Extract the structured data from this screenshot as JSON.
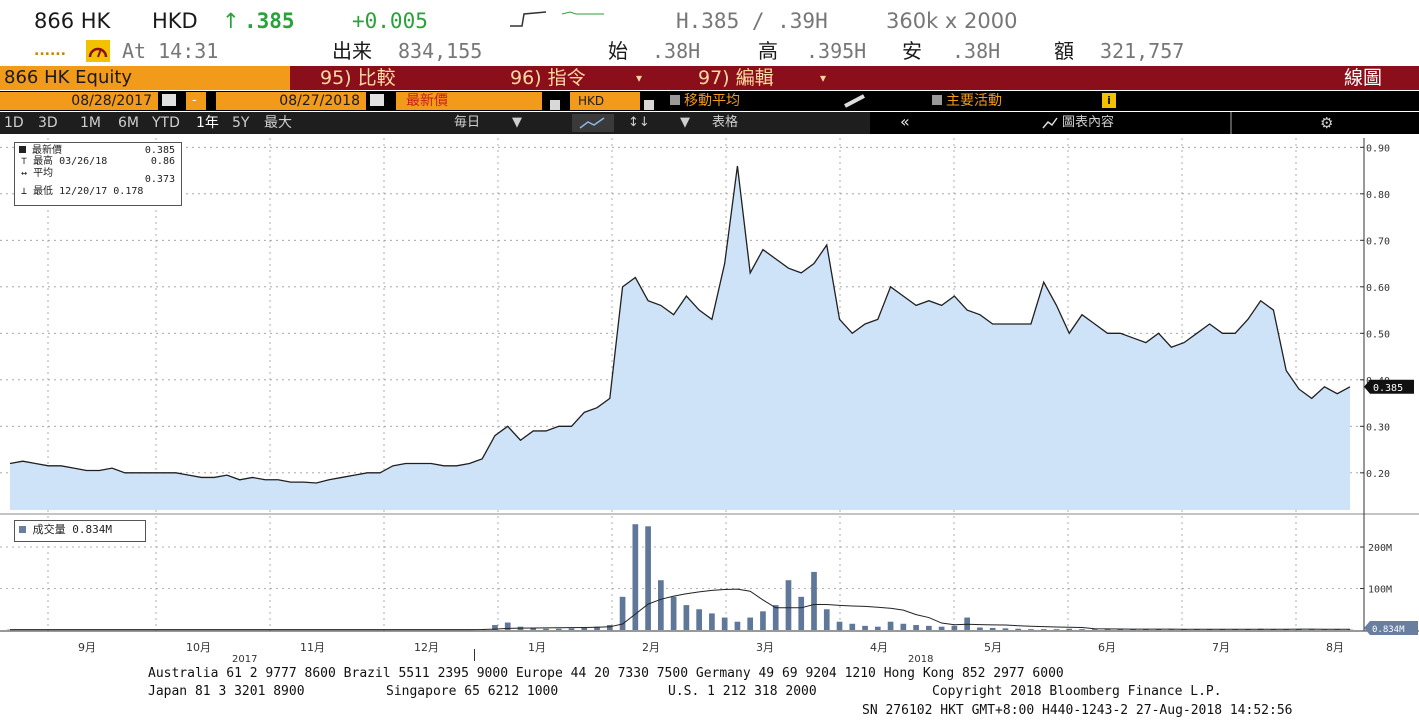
{
  "quote": {
    "ticker": "866 HK",
    "currency": "HKD",
    "arrow": "↑",
    "last": ".385",
    "change": "+0.005",
    "quote_bid": "H.385 / .39H",
    "size": "360k x 2000",
    "dots": "......",
    "at_label": "At 14:31",
    "vol_label": "出来",
    "vol_value": "834,155",
    "open_label": "始",
    "open_value": ".38H",
    "high_label": "高",
    "high_value": ".395H",
    "low_label": "安",
    "low_value": ".38H",
    "amt_label": "額",
    "amt_value": "321,757"
  },
  "command_bar": {
    "security": "866 HK Equity",
    "btn_compare": "95) 比較",
    "btn_actions": "96) 指令",
    "btn_edit": "97) 編輯",
    "view_name": "線圖"
  },
  "settings_bar": {
    "start_date": "08/28/2017",
    "dash": "-",
    "end_date": "08/27/2018",
    "price_field": "最新價",
    "currency": "HKD",
    "ma_label": "移動平均",
    "events_label": "主要活動",
    "info_label": "i"
  },
  "toolbar": {
    "periods": [
      "1D",
      "3D",
      "1M",
      "6M",
      "YTD",
      "1年",
      "5Y",
      "最大"
    ],
    "active_period": "1年",
    "frequency": "毎日",
    "table_label": "表格",
    "collapse": "«",
    "chart_content": "圖表內容",
    "settings": "⚙"
  },
  "legend": {
    "last_label": "最新價",
    "last_value": "0.385",
    "high_label": "最高 03/26/18",
    "high_value": "0.86",
    "avg_label": "平均",
    "avg_value": "0.373",
    "low_label": "最低 12/20/17",
    "low_value": "0.178"
  },
  "volume_legend": {
    "label": "成交量",
    "value": "0.834M"
  },
  "chart_data": [
    {
      "type": "area",
      "series": [
        {
          "name": "最新價",
          "values": [
            0.22,
            0.225,
            0.22,
            0.215,
            0.215,
            0.21,
            0.205,
            0.205,
            0.21,
            0.2,
            0.2,
            0.2,
            0.2,
            0.2,
            0.195,
            0.19,
            0.19,
            0.195,
            0.185,
            0.19,
            0.185,
            0.185,
            0.18,
            0.18,
            0.178,
            0.185,
            0.19,
            0.195,
            0.2,
            0.2,
            0.215,
            0.22,
            0.22,
            0.22,
            0.215,
            0.215,
            0.22,
            0.23,
            0.28,
            0.3,
            0.27,
            0.29,
            0.29,
            0.3,
            0.3,
            0.33,
            0.34,
            0.36,
            0.6,
            0.62,
            0.57,
            0.56,
            0.54,
            0.58,
            0.55,
            0.53,
            0.65,
            0.86,
            0.63,
            0.68,
            0.66,
            0.64,
            0.63,
            0.65,
            0.69,
            0.53,
            0.5,
            0.52,
            0.53,
            0.6,
            0.58,
            0.56,
            0.57,
            0.56,
            0.58,
            0.55,
            0.54,
            0.52,
            0.52,
            0.52,
            0.52,
            0.61,
            0.56,
            0.5,
            0.54,
            0.52,
            0.5,
            0.5,
            0.49,
            0.48,
            0.5,
            0.47,
            0.48,
            0.5,
            0.52,
            0.5,
            0.5,
            0.53,
            0.57,
            0.55,
            0.42,
            0.38,
            0.36,
            0.385,
            0.37,
            0.385
          ]
        }
      ],
      "ylim": [
        0.12,
        0.92
      ],
      "yticks": [
        "0.90",
        "0.80",
        "0.70",
        "0.60",
        "0.50",
        "0.40",
        "0.30",
        "0.20"
      ],
      "last_marker": "0.385",
      "grid": true
    },
    {
      "type": "bar",
      "series": [
        {
          "name": "成交量",
          "values": [
            1,
            1,
            1,
            1,
            1,
            1,
            1,
            1,
            1,
            1,
            1,
            1,
            1,
            1,
            1,
            1,
            1,
            1,
            1,
            1,
            1,
            1,
            1,
            1,
            1,
            1,
            1,
            1,
            1,
            1,
            1,
            1,
            1,
            1,
            1,
            1,
            1,
            2,
            12,
            18,
            8,
            4,
            3,
            3,
            4,
            5,
            8,
            12,
            80,
            255,
            250,
            120,
            80,
            60,
            50,
            40,
            30,
            20,
            30,
            45,
            60,
            120,
            80,
            140,
            50,
            20,
            15,
            10,
            8,
            20,
            15,
            12,
            10,
            8,
            10,
            30,
            6,
            5,
            4,
            3,
            2,
            2,
            2,
            3,
            2,
            2,
            2,
            2,
            2,
            2,
            2,
            1,
            1,
            2,
            2,
            2,
            2,
            2,
            3,
            2,
            2,
            2,
            1,
            1,
            1,
            1
          ]
        }
      ],
      "ylim": [
        0,
        270
      ],
      "yticks": [
        "200M",
        "100M"
      ],
      "last_marker": "0.834M",
      "grid": true
    }
  ],
  "x_axis": {
    "months": [
      "9月",
      "10月",
      "11月",
      "12月",
      "1月",
      "2月",
      "3月",
      "4月",
      "5月",
      "6月",
      "7月",
      "8月"
    ],
    "year_2017": "2017",
    "year_2018": "2018"
  },
  "footer": {
    "line1": "Australia 61 2 9777 8600 Brazil 5511 2395 9000 Europe 44 20 7330 7500 Germany 49 69 9204 1210 Hong Kong 852 2977 6000",
    "line2_a": "Japan 81 3 3201 8900",
    "line2_b": "Singapore 65 6212 1000",
    "line2_c": "U.S. 1 212 318 2000",
    "line2_d": "Copyright 2018 Bloomberg Finance L.P.",
    "line3": "SN 276102 HKT  GMT+8:00 H440-1243-2 27-Aug-2018 14:52:56"
  }
}
